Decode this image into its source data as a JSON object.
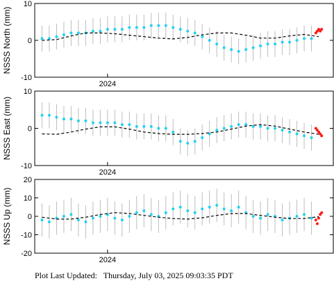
{
  "footer": {
    "label": "Plot Last Updated:",
    "timestamp": "Thursday, July 03, 2025 09:03:35 PDT"
  },
  "colors": {
    "points": "#22d3ee",
    "recent_points": "#ff1a1a",
    "error_bars": "#bdbdbd",
    "model": "#000000",
    "frame": "#000000"
  },
  "chart_data": [
    {
      "type": "scatter",
      "ylabel": "NSSS North (mm)",
      "ylim": [
        -10,
        10
      ],
      "yticks": [
        -10,
        0,
        10
      ],
      "xtick_label": "2024",
      "xrange": [
        2023.5,
        2025.55
      ],
      "xtick_value": 2024.0,
      "series": [
        {
          "role": "daily_positions",
          "x": [
            2023.55,
            2023.6,
            2023.65,
            2023.7,
            2023.75,
            2023.8,
            2023.85,
            2023.9,
            2023.95,
            2024.0,
            2024.05,
            2024.1,
            2024.15,
            2024.2,
            2024.25,
            2024.3,
            2024.35,
            2024.4,
            2024.45,
            2024.5,
            2024.55,
            2024.6,
            2024.65,
            2024.7,
            2024.75,
            2024.8,
            2024.85,
            2024.9,
            2024.95,
            2025.0,
            2025.05,
            2025.1,
            2025.15,
            2025.2,
            2025.25,
            2025.3,
            2025.35,
            2025.4
          ],
          "y": [
            0.5,
            0.5,
            1.0,
            1.5,
            2.0,
            2.0,
            2.0,
            2.5,
            2.5,
            3.0,
            3.0,
            3.0,
            3.5,
            3.5,
            3.5,
            4.0,
            4.0,
            4.0,
            3.5,
            3.0,
            2.5,
            2.0,
            1.0,
            0.0,
            -1.0,
            -2.0,
            -2.5,
            -3.0,
            -2.5,
            -2.0,
            -1.5,
            -1.0,
            -1.0,
            -0.5,
            -0.5,
            0.0,
            0.5,
            0.5
          ],
          "err": 3.5
        },
        {
          "role": "recent_positions",
          "x": [
            2025.43,
            2025.44,
            2025.45,
            2025.46,
            2025.47
          ],
          "y": [
            2.0,
            2.5,
            3.0,
            2.5,
            3.0
          ]
        },
        {
          "role": "model",
          "x": [
            2023.55,
            2023.65,
            2023.75,
            2023.85,
            2023.95,
            2024.05,
            2024.15,
            2024.25,
            2024.35,
            2024.45,
            2024.55,
            2024.65,
            2024.75,
            2024.85,
            2024.95,
            2025.05,
            2025.15,
            2025.25,
            2025.35,
            2025.45
          ],
          "y": [
            0.0,
            0.2,
            1.2,
            2.0,
            2.0,
            1.8,
            1.4,
            1.0,
            0.6,
            0.4,
            0.8,
            1.5,
            2.0,
            2.0,
            1.4,
            0.6,
            0.6,
            1.2,
            1.6,
            1.0
          ]
        }
      ]
    },
    {
      "type": "scatter",
      "ylabel": "NSSS East (mm)",
      "ylim": [
        -10,
        10
      ],
      "yticks": [
        -10,
        0,
        10
      ],
      "xtick_label": "2024",
      "xrange": [
        2023.5,
        2025.55
      ],
      "xtick_value": 2024.0,
      "series": [
        {
          "role": "daily_positions",
          "x": [
            2023.55,
            2023.6,
            2023.65,
            2023.7,
            2023.75,
            2023.8,
            2023.85,
            2023.9,
            2023.95,
            2024.0,
            2024.05,
            2024.1,
            2024.15,
            2024.2,
            2024.25,
            2024.3,
            2024.35,
            2024.4,
            2024.45,
            2024.5,
            2024.55,
            2024.6,
            2024.65,
            2024.7,
            2024.75,
            2024.8,
            2024.85,
            2024.9,
            2024.95,
            2025.0,
            2025.05,
            2025.1,
            2025.15,
            2025.2,
            2025.25,
            2025.3,
            2025.35,
            2025.4
          ],
          "y": [
            3.5,
            3.5,
            3.0,
            2.5,
            2.5,
            2.0,
            2.0,
            1.5,
            1.5,
            1.5,
            1.5,
            1.0,
            1.0,
            0.5,
            0.5,
            0.5,
            0.0,
            0.0,
            -1.0,
            -3.5,
            -4.0,
            -3.5,
            -2.5,
            -1.5,
            -0.5,
            0.0,
            0.5,
            1.0,
            1.0,
            0.5,
            0.5,
            0.0,
            0.0,
            -0.5,
            -1.0,
            -1.5,
            -2.0,
            -2.5
          ],
          "err": 3.5
        },
        {
          "role": "recent_positions",
          "x": [
            2025.43,
            2025.44,
            2025.45,
            2025.46,
            2025.47
          ],
          "y": [
            0.0,
            -0.5,
            -1.0,
            -1.5,
            -2.0
          ]
        },
        {
          "role": "model",
          "x": [
            2023.55,
            2023.65,
            2023.75,
            2023.85,
            2023.95,
            2024.05,
            2024.15,
            2024.25,
            2024.35,
            2024.45,
            2024.55,
            2024.65,
            2024.75,
            2024.85,
            2024.95,
            2025.05,
            2025.15,
            2025.25,
            2025.35,
            2025.45
          ],
          "y": [
            -1.5,
            -1.6,
            -1.0,
            -0.2,
            0.4,
            0.4,
            -0.2,
            -1.0,
            -1.4,
            -1.6,
            -1.6,
            -1.4,
            -1.0,
            -0.2,
            0.6,
            1.0,
            0.6,
            -0.2,
            -1.0,
            -1.6
          ]
        }
      ]
    },
    {
      "type": "scatter",
      "ylabel": "NSSS Up (mm)",
      "ylim": [
        -20,
        20
      ],
      "yticks": [
        -20,
        -10,
        0,
        10,
        20
      ],
      "xtick_label": "2024",
      "xrange": [
        2023.5,
        2025.55
      ],
      "xtick_value": 2024.0,
      "series": [
        {
          "role": "daily_positions",
          "x": [
            2023.55,
            2023.6,
            2023.65,
            2023.7,
            2023.75,
            2023.8,
            2023.85,
            2023.9,
            2023.95,
            2024.0,
            2024.05,
            2024.1,
            2024.15,
            2024.2,
            2024.25,
            2024.3,
            2024.35,
            2024.4,
            2024.45,
            2024.5,
            2024.55,
            2024.6,
            2024.65,
            2024.7,
            2024.75,
            2024.8,
            2024.85,
            2024.9,
            2024.95,
            2025.0,
            2025.05,
            2025.1,
            2025.15,
            2025.2,
            2025.25,
            2025.3,
            2025.35,
            2025.4
          ],
          "y": [
            -2.0,
            -3.0,
            -1.0,
            0.0,
            1.0,
            -2.0,
            -3.0,
            -1.0,
            0.0,
            1.0,
            -1.0,
            -2.0,
            0.0,
            2.0,
            3.0,
            1.0,
            0.0,
            2.0,
            4.0,
            5.0,
            3.0,
            2.0,
            4.0,
            5.0,
            6.0,
            4.0,
            3.0,
            5.0,
            2.0,
            0.0,
            -1.0,
            1.0,
            0.0,
            -2.0,
            -1.0,
            0.0,
            1.0,
            -1.0
          ],
          "err": 9.0
        },
        {
          "role": "recent_positions",
          "x": [
            2025.43,
            2025.44,
            2025.45,
            2025.46,
            2025.47
          ],
          "y": [
            -2.0,
            -4.0,
            -1.0,
            1.0,
            2.0
          ]
        },
        {
          "role": "model",
          "x": [
            2023.55,
            2023.65,
            2023.75,
            2023.85,
            2023.95,
            2024.05,
            2024.15,
            2024.25,
            2024.35,
            2024.45,
            2024.55,
            2024.65,
            2024.75,
            2024.85,
            2024.95,
            2025.05,
            2025.15,
            2025.25,
            2025.35,
            2025.45
          ],
          "y": [
            -0.5,
            -1.5,
            -1.5,
            -0.5,
            1.0,
            2.0,
            1.5,
            0.5,
            -0.5,
            -1.2,
            -1.5,
            -0.8,
            0.5,
            1.5,
            1.5,
            0.5,
            -0.5,
            -1.2,
            -1.2,
            -0.2
          ]
        }
      ]
    }
  ]
}
